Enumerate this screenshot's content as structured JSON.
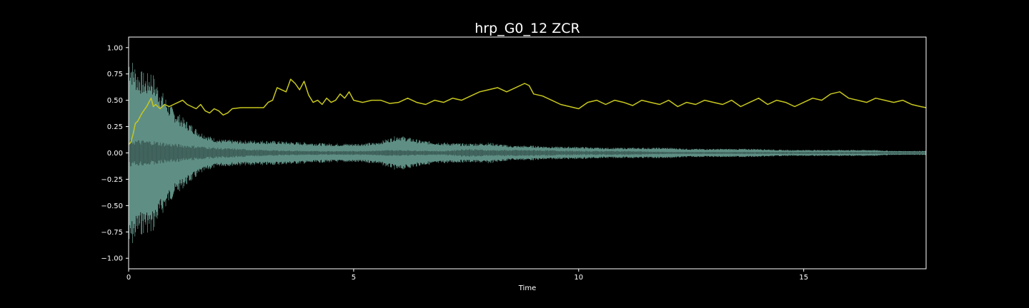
{
  "chart_data": {
    "type": "line",
    "title": "hrp_G0_12 ZCR",
    "xlabel": "Time",
    "ylabel": "",
    "xlim": [
      0,
      17.72
    ],
    "ylim": [
      -1.1,
      1.1
    ],
    "x_ticks": [
      0,
      5,
      10,
      15
    ],
    "x_tick_labels": [
      "0",
      "5",
      "10",
      "15"
    ],
    "y_ticks": [
      1.0,
      0.75,
      0.5,
      0.25,
      0.0,
      -0.25,
      -0.5,
      -0.75,
      -1.0
    ],
    "y_tick_labels": [
      "1.00",
      "0.75",
      "0.50",
      "0.25",
      "0.00",
      "−0.25",
      "−0.50",
      "−0.75",
      "−1.00"
    ],
    "grid": false,
    "colors": {
      "background": "#000000",
      "axes": "#ffffff",
      "waveform": "#5f8f84",
      "waveform_core": "#3a5a54",
      "zcr": "#c8c81e"
    },
    "series": [
      {
        "kind": "waveform-envelope",
        "x": [
          0,
          0.1,
          0.2,
          0.3,
          0.4,
          0.5,
          0.6,
          0.7,
          0.8,
          0.9,
          1.0,
          1.2,
          1.4,
          1.6,
          1.8,
          2.0,
          2.5,
          3.0,
          3.5,
          4.0,
          4.5,
          5.0,
          5.5,
          6.0,
          6.5,
          7.0,
          7.5,
          8.0,
          8.5,
          9.0,
          9.5,
          10.0,
          10.5,
          11.0,
          11.5,
          12.0,
          12.5,
          13.0,
          13.5,
          14.0,
          14.5,
          15.0,
          15.5,
          16.0,
          16.5,
          17.0,
          17.72
        ],
        "values": [
          0.95,
          0.88,
          0.8,
          0.78,
          0.75,
          0.8,
          0.7,
          0.62,
          0.55,
          0.48,
          0.42,
          0.34,
          0.27,
          0.2,
          0.16,
          0.13,
          0.12,
          0.12,
          0.11,
          0.1,
          0.09,
          0.09,
          0.1,
          0.17,
          0.12,
          0.1,
          0.09,
          0.1,
          0.07,
          0.07,
          0.06,
          0.06,
          0.05,
          0.05,
          0.05,
          0.05,
          0.04,
          0.04,
          0.04,
          0.04,
          0.03,
          0.03,
          0.03,
          0.03,
          0.03,
          0.02,
          0.02
        ]
      },
      {
        "kind": "waveform-core",
        "x": [
          0,
          0.5,
          1.0,
          1.5,
          2.0,
          3.0,
          4.0,
          5.0,
          6.0,
          7.0,
          7.5,
          8.0,
          9.0,
          10.0,
          11.0,
          12.0,
          13.0,
          14.0,
          15.0,
          16.0,
          17.72
        ],
        "values": [
          0.13,
          0.12,
          0.09,
          0.07,
          0.05,
          0.03,
          0.02,
          0.02,
          0.03,
          0.02,
          0.04,
          0.03,
          0.03,
          0.02,
          0.02,
          0.01,
          0.01,
          0.01,
          0.01,
          0.01,
          0.01
        ]
      },
      {
        "kind": "zcr",
        "x": [
          0.0,
          0.05,
          0.1,
          0.15,
          0.2,
          0.3,
          0.4,
          0.45,
          0.5,
          0.55,
          0.6,
          0.7,
          0.8,
          0.9,
          1.0,
          1.1,
          1.2,
          1.3,
          1.4,
          1.5,
          1.6,
          1.7,
          1.8,
          1.9,
          2.0,
          2.1,
          2.2,
          2.3,
          2.5,
          2.8,
          3.0,
          3.1,
          3.2,
          3.3,
          3.4,
          3.5,
          3.6,
          3.7,
          3.8,
          3.9,
          4.0,
          4.1,
          4.2,
          4.3,
          4.4,
          4.5,
          4.6,
          4.7,
          4.8,
          4.9,
          5.0,
          5.2,
          5.4,
          5.6,
          5.8,
          6.0,
          6.2,
          6.4,
          6.6,
          6.8,
          7.0,
          7.2,
          7.4,
          7.6,
          7.8,
          8.0,
          8.2,
          8.4,
          8.6,
          8.8,
          8.9,
          9.0,
          9.2,
          9.4,
          9.6,
          9.8,
          10.0,
          10.2,
          10.4,
          10.6,
          10.8,
          11.0,
          11.2,
          11.4,
          11.6,
          11.8,
          12.0,
          12.2,
          12.4,
          12.6,
          12.8,
          13.0,
          13.2,
          13.4,
          13.6,
          13.8,
          14.0,
          14.2,
          14.4,
          14.6,
          14.8,
          15.0,
          15.2,
          15.4,
          15.6,
          15.8,
          16.0,
          16.2,
          16.4,
          16.6,
          16.8,
          17.0,
          17.2,
          17.4,
          17.6,
          17.72
        ],
        "values": [
          0.08,
          0.1,
          0.18,
          0.28,
          0.3,
          0.38,
          0.44,
          0.48,
          0.52,
          0.44,
          0.46,
          0.42,
          0.46,
          0.44,
          0.46,
          0.48,
          0.5,
          0.46,
          0.44,
          0.42,
          0.46,
          0.4,
          0.38,
          0.42,
          0.4,
          0.36,
          0.38,
          0.42,
          0.43,
          0.43,
          0.43,
          0.48,
          0.5,
          0.62,
          0.6,
          0.58,
          0.7,
          0.66,
          0.6,
          0.68,
          0.55,
          0.48,
          0.5,
          0.46,
          0.52,
          0.48,
          0.5,
          0.56,
          0.52,
          0.58,
          0.5,
          0.48,
          0.5,
          0.5,
          0.47,
          0.48,
          0.52,
          0.48,
          0.46,
          0.5,
          0.48,
          0.52,
          0.5,
          0.54,
          0.58,
          0.6,
          0.62,
          0.58,
          0.62,
          0.66,
          0.64,
          0.56,
          0.54,
          0.5,
          0.46,
          0.44,
          0.42,
          0.48,
          0.5,
          0.46,
          0.5,
          0.48,
          0.45,
          0.5,
          0.48,
          0.46,
          0.5,
          0.44,
          0.48,
          0.46,
          0.5,
          0.48,
          0.46,
          0.5,
          0.44,
          0.48,
          0.52,
          0.46,
          0.5,
          0.48,
          0.44,
          0.48,
          0.52,
          0.5,
          0.56,
          0.58,
          0.52,
          0.5,
          0.48,
          0.52,
          0.5,
          0.48,
          0.5,
          0.46,
          0.44,
          0.43
        ]
      }
    ]
  }
}
